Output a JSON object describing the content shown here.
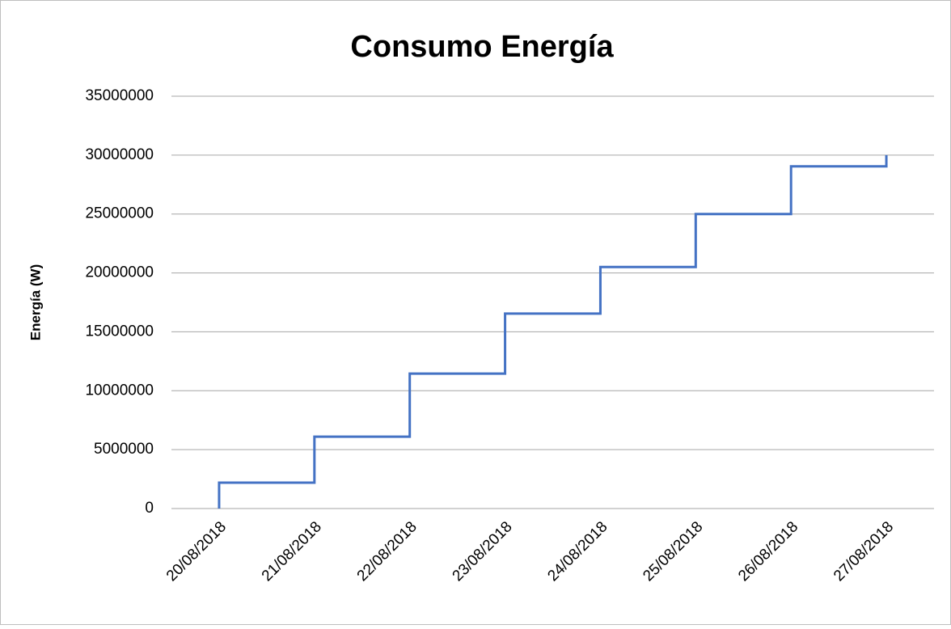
{
  "chart_data": {
    "type": "line",
    "title": "Consumo Energía",
    "y_label": "Energía (W)",
    "categories": [
      "20/08/2018",
      "21/08/2018",
      "22/08/2018",
      "23/08/2018",
      "24/08/2018",
      "25/08/2018",
      "26/08/2018",
      "27/08/2018"
    ],
    "series": [
      {
        "color": "#4472c4",
        "x": [
          "20/08/2018",
          "20/08/2018",
          "21/08/2018",
          "21/08/2018",
          "22/08/2018",
          "22/08/2018",
          "23/08/2018",
          "23/08/2018",
          "24/08/2018",
          "24/08/2018",
          "25/08/2018",
          "25/08/2018",
          "26/08/2018",
          "26/08/2018",
          "27/08/2018",
          "27/08/2018"
        ],
        "values": [
          0,
          2200000,
          2200000,
          6100000,
          6100000,
          11450000,
          11450000,
          16550000,
          16550000,
          20500000,
          20500000,
          25000000,
          25000000,
          29050000,
          29050000,
          30000000
        ]
      }
    ],
    "ylim": [
      0,
      35000000
    ],
    "yticks": [
      0,
      5000000,
      10000000,
      15000000,
      20000000,
      25000000,
      30000000,
      35000000
    ],
    "grid": true
  }
}
